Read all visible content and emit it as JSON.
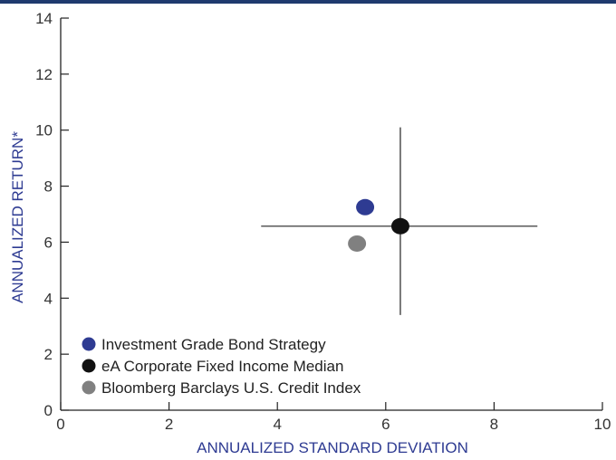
{
  "chart_data": {
    "type": "scatter",
    "title": "",
    "xlabel": "ANNUALIZED STANDARD DEVIATION",
    "ylabel": "ANNUALIZED RETURN*",
    "xlim": [
      0,
      10
    ],
    "ylim": [
      0,
      14
    ],
    "xticks": [
      "0",
      "2",
      "4",
      "6",
      "8",
      "10"
    ],
    "yticks": [
      "0",
      "2",
      "4",
      "6",
      "8",
      "10",
      "12",
      "14"
    ],
    "grid": false,
    "legend_position": "bottom-left",
    "crosshair": {
      "x": 6.27,
      "y": 6.57,
      "x_range": [
        3.7,
        8.8
      ],
      "y_range": [
        3.4,
        10.1
      ]
    },
    "series": [
      {
        "name": "Investment Grade Bond Strategy",
        "x": 5.62,
        "y": 7.25,
        "color": "#2e3b92"
      },
      {
        "name": "eA Corporate Fixed Income Median",
        "x": 6.27,
        "y": 6.57,
        "color": "#111111"
      },
      {
        "name": "Bloomberg Barclays U.S. Credit Index",
        "x": 5.47,
        "y": 5.95,
        "color": "#808080"
      }
    ],
    "colors": {
      "axis_label": "#2e3b92",
      "axis": "#222222",
      "top_bar": "#1f3a6e"
    }
  }
}
